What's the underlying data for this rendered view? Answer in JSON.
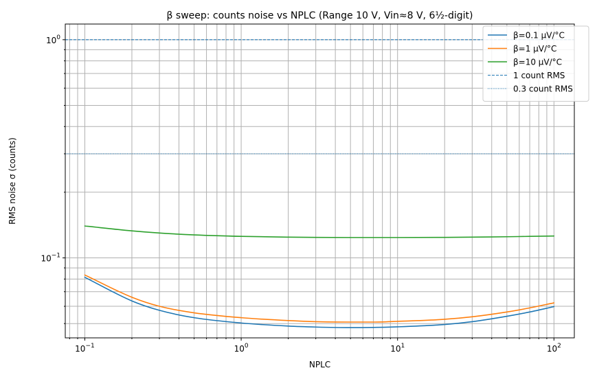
{
  "chart_data": {
    "type": "line",
    "title": "β sweep: counts noise vs NPLC (Range 10 V, Vin≈8 V, 6½-digit)",
    "xlabel": "NPLC",
    "ylabel": "RMS noise σ (counts)",
    "xscale": "log",
    "yscale": "log",
    "xlim": [
      0.075,
      135
    ],
    "ylim": [
      0.043,
      1.18
    ],
    "xticks": [
      {
        "value": 0.1,
        "base": "10",
        "exp": "−1"
      },
      {
        "value": 1,
        "base": "10",
        "exp": "0"
      },
      {
        "value": 10,
        "base": "10",
        "exp": "1"
      },
      {
        "value": 100,
        "base": "10",
        "exp": "2"
      }
    ],
    "yticks": [
      {
        "value": 0.1,
        "base": "10",
        "exp": "−1"
      },
      {
        "value": 1,
        "base": "10",
        "exp": "0"
      }
    ],
    "grid": true,
    "legend_position": "top-right",
    "x": [
      0.1,
      0.2,
      0.3,
      0.5,
      1,
      2,
      3,
      5,
      7,
      10,
      20,
      30,
      50,
      70,
      100
    ],
    "series": [
      {
        "name": "β=0.1 µV/°C",
        "color": "#1f77b4",
        "style": "solid",
        "values": [
          0.0815,
          0.0635,
          0.0575,
          0.0532,
          0.0503,
          0.0487,
          0.0482,
          0.0479,
          0.048,
          0.0483,
          0.0495,
          0.051,
          0.054,
          0.0565,
          0.0598
        ]
      },
      {
        "name": "β=1 µV/°C",
        "color": "#ff7f0e",
        "style": "solid",
        "values": [
          0.0835,
          0.066,
          0.06,
          0.056,
          0.0532,
          0.0516,
          0.051,
          0.0508,
          0.0508,
          0.0512,
          0.0523,
          0.0537,
          0.0565,
          0.059,
          0.0622
        ]
      },
      {
        "name": "β=10 µV/°C",
        "color": "#2ca02c",
        "style": "solid",
        "values": [
          0.14,
          0.133,
          0.13,
          0.1275,
          0.1255,
          0.1245,
          0.1242,
          0.124,
          0.124,
          0.124,
          0.1242,
          0.1245,
          0.125,
          0.1255,
          0.126
        ]
      }
    ],
    "reference_lines": [
      {
        "name": "1 count RMS",
        "y": 1.0,
        "color": "#1f77b4",
        "style": "dashed"
      },
      {
        "name": "0.3 count RMS",
        "y": 0.3,
        "color": "#1f77b4",
        "style": "dotted"
      }
    ]
  }
}
